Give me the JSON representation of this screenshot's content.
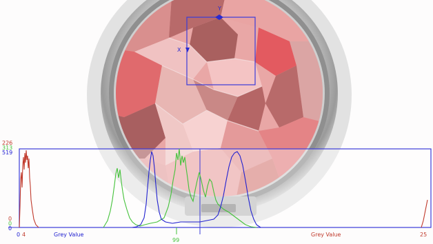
{
  "roi": {
    "x_label": "X",
    "y_label": "Y"
  },
  "histogram": {
    "y_tick_red": "226",
    "y_tick_green": "313",
    "y_tick_blue": "519",
    "zero_red": "0",
    "zero_green": "0",
    "zero_blue": "0",
    "x_tick_left_0": "0",
    "x_tick_left_4": "4",
    "x_label_left": "Grey Value",
    "x_label_right": "Grey Value",
    "x_tick_right": "25",
    "marker_value": "99"
  },
  "colors": {
    "red_channel": "#c0392b",
    "green_channel": "#44c23a",
    "blue_channel": "#2020d0",
    "frame": "#3b3bd9"
  }
}
